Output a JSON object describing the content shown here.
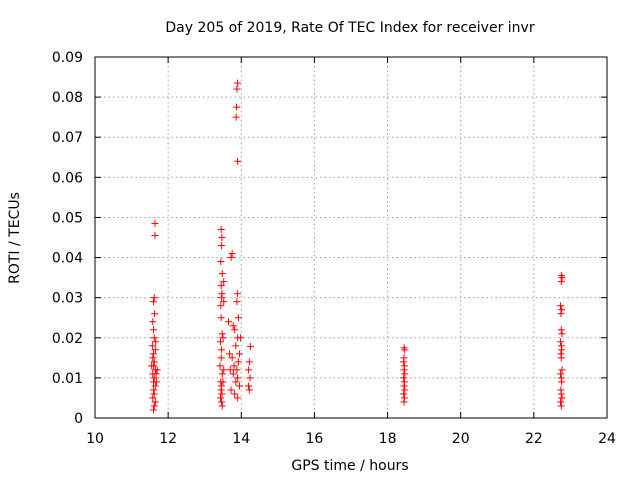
{
  "chart_data": {
    "type": "scatter",
    "title": "Day 205 of 2019, Rate Of TEC Index for receiver invr",
    "xlabel": "GPS time / hours",
    "ylabel": "ROTI / TECUs",
    "xlim": [
      10,
      24
    ],
    "ylim": [
      0,
      0.09
    ],
    "grid": true,
    "marker": "+",
    "color": "#ff0000",
    "x_ticks": [
      "10",
      "12",
      "14",
      "16",
      "18",
      "20",
      "22",
      "24"
    ],
    "y_ticks": [
      "0",
      "0.01",
      "0.02",
      "0.03",
      "0.04",
      "0.05",
      "0.06",
      "0.07",
      "0.08",
      "0.09"
    ],
    "series": [
      {
        "name": "ROTI",
        "points": [
          [
            11.6,
            0.029
          ],
          [
            11.62,
            0.03
          ],
          [
            11.58,
            0.024
          ],
          [
            11.6,
            0.022
          ],
          [
            11.62,
            0.02
          ],
          [
            11.65,
            0.017
          ],
          [
            11.6,
            0.016
          ],
          [
            11.58,
            0.015
          ],
          [
            11.62,
            0.014
          ],
          [
            11.6,
            0.013
          ],
          [
            11.65,
            0.012
          ],
          [
            11.58,
            0.011
          ],
          [
            11.62,
            0.01
          ],
          [
            11.6,
            0.009
          ],
          [
            11.65,
            0.008
          ],
          [
            11.6,
            0.007
          ],
          [
            11.62,
            0.006
          ],
          [
            11.58,
            0.005
          ],
          [
            11.65,
            0.004
          ],
          [
            11.62,
            0.003
          ],
          [
            11.6,
            0.002
          ],
          [
            11.68,
            0.009
          ],
          [
            11.7,
            0.012
          ],
          [
            11.55,
            0.013
          ],
          [
            11.57,
            0.018
          ],
          [
            11.64,
            0.0455
          ],
          [
            11.64,
            0.0485
          ],
          [
            11.63,
            0.026
          ],
          [
            11.66,
            0.019
          ],
          [
            11.67,
            0.011
          ],
          [
            13.45,
            0.047
          ],
          [
            13.47,
            0.045
          ],
          [
            13.46,
            0.043
          ],
          [
            13.44,
            0.039
          ],
          [
            13.48,
            0.036
          ],
          [
            13.45,
            0.033
          ],
          [
            13.47,
            0.031
          ],
          [
            13.46,
            0.03
          ],
          [
            13.44,
            0.028
          ],
          [
            13.45,
            0.025
          ],
          [
            13.48,
            0.021
          ],
          [
            13.43,
            0.019
          ],
          [
            13.46,
            0.017
          ],
          [
            13.45,
            0.015
          ],
          [
            13.42,
            0.013
          ],
          [
            13.48,
            0.011
          ],
          [
            13.44,
            0.009
          ],
          [
            13.46,
            0.008
          ],
          [
            13.45,
            0.007
          ],
          [
            13.47,
            0.006
          ],
          [
            13.43,
            0.005
          ],
          [
            13.46,
            0.004
          ],
          [
            13.48,
            0.003
          ],
          [
            13.5,
            0.009
          ],
          [
            13.52,
            0.012
          ],
          [
            13.52,
            0.034
          ],
          [
            13.52,
            0.029
          ],
          [
            13.5,
            0.02
          ],
          [
            13.9,
            0.0835
          ],
          [
            13.88,
            0.082
          ],
          [
            13.87,
            0.0775
          ],
          [
            13.86,
            0.075
          ],
          [
            13.9,
            0.064
          ],
          [
            13.75,
            0.041
          ],
          [
            13.72,
            0.04
          ],
          [
            13.9,
            0.031
          ],
          [
            13.88,
            0.029
          ],
          [
            13.92,
            0.025
          ],
          [
            13.78,
            0.023
          ],
          [
            13.82,
            0.022
          ],
          [
            13.9,
            0.02
          ],
          [
            13.85,
            0.018
          ],
          [
            13.95,
            0.016
          ],
          [
            13.75,
            0.015
          ],
          [
            13.92,
            0.014
          ],
          [
            13.8,
            0.013
          ],
          [
            13.88,
            0.012
          ],
          [
            13.78,
            0.011
          ],
          [
            13.9,
            0.01
          ],
          [
            13.85,
            0.009
          ],
          [
            13.95,
            0.008
          ],
          [
            13.72,
            0.007
          ],
          [
            13.82,
            0.006
          ],
          [
            13.9,
            0.005
          ],
          [
            13.7,
            0.012
          ],
          [
            13.68,
            0.016
          ],
          [
            13.65,
            0.024
          ],
          [
            13.98,
            0.02
          ],
          [
            14.25,
            0.0178
          ],
          [
            14.22,
            0.014
          ],
          [
            14.2,
            0.012
          ],
          [
            14.24,
            0.01
          ],
          [
            14.2,
            0.008
          ],
          [
            14.22,
            0.007
          ],
          [
            18.45,
            0.0175
          ],
          [
            18.47,
            0.017
          ],
          [
            18.45,
            0.015
          ],
          [
            18.44,
            0.014
          ],
          [
            18.46,
            0.013
          ],
          [
            18.45,
            0.012
          ],
          [
            18.47,
            0.011
          ],
          [
            18.44,
            0.01
          ],
          [
            18.46,
            0.009
          ],
          [
            18.45,
            0.008
          ],
          [
            18.47,
            0.007
          ],
          [
            18.44,
            0.006
          ],
          [
            18.46,
            0.005
          ],
          [
            18.45,
            0.004
          ],
          [
            22.75,
            0.0355
          ],
          [
            22.77,
            0.035
          ],
          [
            22.75,
            0.034
          ],
          [
            22.73,
            0.028
          ],
          [
            22.76,
            0.027
          ],
          [
            22.74,
            0.026
          ],
          [
            22.75,
            0.022
          ],
          [
            22.77,
            0.021
          ],
          [
            22.73,
            0.019
          ],
          [
            22.75,
            0.018
          ],
          [
            22.76,
            0.017
          ],
          [
            22.74,
            0.016
          ],
          [
            22.75,
            0.015
          ],
          [
            22.77,
            0.012
          ],
          [
            22.73,
            0.011
          ],
          [
            22.75,
            0.01
          ],
          [
            22.76,
            0.009
          ],
          [
            22.74,
            0.007
          ],
          [
            22.75,
            0.006
          ],
          [
            22.77,
            0.005
          ],
          [
            22.73,
            0.004
          ],
          [
            22.75,
            0.003
          ]
        ]
      }
    ]
  }
}
